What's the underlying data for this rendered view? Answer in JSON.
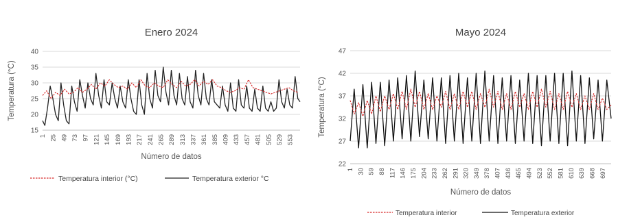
{
  "chart_data": [
    {
      "type": "line",
      "title": "Enero 2024",
      "xlabel": "Número de datos",
      "ylabel": "Temperatura (°C)",
      "ylim": [
        15,
        40
      ],
      "yticks": [
        15,
        20,
        25,
        30,
        35,
        40
      ],
      "xticks": [
        1,
        25,
        49,
        73,
        97,
        121,
        145,
        169,
        193,
        217,
        241,
        265,
        289,
        313,
        337,
        361,
        385,
        409,
        433,
        457,
        481,
        505,
        529,
        553
      ],
      "x_max": 575,
      "grid": true,
      "legend_position": "bottom",
      "series": [
        {
          "name": "Temperatura interior (°C)",
          "color": "#d62828",
          "style": "dashed",
          "x": [
            1,
            10,
            20,
            30,
            40,
            50,
            60,
            70,
            80,
            90,
            100,
            110,
            120,
            130,
            140,
            150,
            160,
            170,
            180,
            190,
            200,
            210,
            220,
            230,
            240,
            250,
            260,
            270,
            280,
            290,
            300,
            310,
            320,
            330,
            340,
            350,
            360,
            370,
            380,
            390,
            400,
            410,
            420,
            430,
            440,
            450,
            460,
            470,
            480,
            490,
            500,
            510,
            520,
            530,
            540,
            550,
            560,
            570
          ],
          "values": [
            26,
            27.5,
            25,
            27,
            26,
            28,
            26.5,
            27,
            28.5,
            27,
            28,
            29.5,
            28,
            30,
            29,
            31,
            29.5,
            28.5,
            29,
            28,
            30,
            28.5,
            31,
            29,
            28.5,
            30,
            29,
            28.5,
            31,
            29.5,
            28.5,
            30.5,
            29,
            29.5,
            31,
            29,
            30.5,
            29.5,
            31,
            29,
            28.5,
            27.5,
            27,
            27.5,
            28.5,
            28,
            31,
            28.5,
            28,
            27.5,
            27,
            26.5,
            27,
            27.5,
            28,
            28.5,
            27.5,
            27
          ]
        },
        {
          "name": "Temperatura exterior °C",
          "color": "#222222",
          "style": "solid",
          "x": [
            1,
            6,
            12,
            18,
            24,
            30,
            36,
            42,
            48,
            54,
            60,
            66,
            72,
            78,
            84,
            90,
            96,
            102,
            108,
            114,
            120,
            126,
            132,
            138,
            144,
            150,
            156,
            162,
            168,
            174,
            180,
            186,
            192,
            198,
            204,
            210,
            216,
            222,
            228,
            234,
            240,
            246,
            252,
            258,
            264,
            270,
            276,
            282,
            288,
            294,
            300,
            306,
            312,
            318,
            324,
            330,
            336,
            342,
            348,
            354,
            360,
            366,
            372,
            378,
            384,
            390,
            396,
            402,
            408,
            414,
            420,
            426,
            432,
            438,
            444,
            450,
            456,
            462,
            468,
            474,
            480,
            486,
            492,
            498,
            504,
            510,
            516,
            522,
            528,
            534,
            540,
            546,
            552,
            558,
            564,
            570,
            575
          ],
          "values": [
            18,
            16.5,
            22,
            29,
            25,
            20,
            18,
            30,
            23,
            18,
            17,
            29,
            24,
            21,
            31,
            26,
            22,
            30,
            25,
            23,
            33,
            26,
            22,
            31,
            24,
            23,
            30,
            25,
            22,
            29,
            24,
            22,
            31,
            25,
            21,
            20,
            31,
            23,
            20,
            33,
            25,
            22,
            34,
            26,
            24,
            35,
            27,
            23,
            34,
            26,
            23,
            33,
            25,
            23,
            32,
            24,
            22,
            34,
            26,
            23,
            33,
            25,
            23,
            31,
            24,
            23,
            22,
            29,
            23,
            21,
            30,
            22,
            21,
            31,
            23,
            22,
            29,
            22,
            21,
            28,
            22,
            21,
            29,
            22,
            21,
            24,
            21,
            22,
            31,
            24,
            22,
            28,
            23,
            22,
            32,
            25,
            24
          ]
        }
      ]
    },
    {
      "type": "line",
      "title": "Mayo 2024",
      "xlabel": "Número de datos",
      "ylabel": "Temperatura (°C)",
      "ylim": [
        22,
        47
      ],
      "yticks": [
        22,
        27,
        32,
        37,
        42,
        47
      ],
      "xticks": [
        1,
        30,
        59,
        88,
        117,
        146,
        175,
        204,
        233,
        262,
        291,
        320,
        349,
        378,
        407,
        436,
        465,
        494,
        523,
        552,
        581,
        610,
        639,
        668,
        697
      ],
      "x_max": 720,
      "grid": true,
      "legend_position": "bottom",
      "series": [
        {
          "name": "Temperatura interior",
          "color": "#d62828",
          "style": "dashed",
          "x": [
            1,
            12,
            24,
            36,
            48,
            60,
            72,
            84,
            96,
            108,
            120,
            132,
            144,
            156,
            168,
            180,
            192,
            204,
            216,
            228,
            240,
            252,
            264,
            276,
            288,
            300,
            312,
            324,
            336,
            348,
            360,
            372,
            384,
            396,
            408,
            420,
            432,
            444,
            456,
            468,
            480,
            492,
            504,
            516,
            528,
            540,
            552,
            564,
            576,
            588,
            600,
            612,
            624,
            636,
            648,
            660,
            672,
            684,
            696,
            708,
            720
          ],
          "values": [
            36,
            33,
            35.5,
            32.5,
            36,
            33,
            37,
            33.5,
            37,
            34,
            37.5,
            34,
            38,
            34,
            38.5,
            34.5,
            38,
            34,
            37.5,
            34,
            37,
            34.5,
            38,
            34,
            37.5,
            34,
            38,
            34.5,
            38,
            34,
            37.5,
            34.5,
            38.5,
            34.5,
            38,
            34,
            37.5,
            34,
            38,
            34.5,
            37.5,
            34,
            38,
            34.5,
            38.5,
            34.5,
            38,
            34,
            37.5,
            34,
            38,
            34.5,
            37.5,
            34,
            37,
            34,
            37.5,
            34,
            36.5,
            34,
            35
          ]
        },
        {
          "name": "Temperatura exterior",
          "color": "#111111",
          "style": "solid",
          "x": [
            1,
            12,
            24,
            36,
            48,
            60,
            72,
            84,
            96,
            108,
            120,
            132,
            144,
            156,
            168,
            180,
            192,
            204,
            216,
            228,
            240,
            252,
            264,
            276,
            288,
            300,
            312,
            324,
            336,
            348,
            360,
            372,
            384,
            396,
            408,
            420,
            432,
            444,
            456,
            468,
            480,
            492,
            504,
            516,
            528,
            540,
            552,
            564,
            576,
            588,
            600,
            612,
            624,
            636,
            648,
            660,
            672,
            684,
            696,
            708,
            720
          ],
          "values": [
            27,
            38.5,
            25.5,
            39.5,
            25.5,
            40,
            26.5,
            40,
            26,
            40.5,
            27,
            41,
            27.5,
            41.5,
            27,
            42.5,
            28,
            40.5,
            27.5,
            41,
            27,
            41,
            26.5,
            41.5,
            27,
            42,
            26.5,
            41,
            27,
            42,
            26.5,
            42.5,
            27,
            41.5,
            26.5,
            41,
            27,
            41.5,
            26.5,
            40.5,
            27,
            42,
            26.5,
            41.5,
            26,
            41.5,
            27,
            42,
            26.5,
            42,
            26,
            42.5,
            27,
            41.5,
            26.5,
            41,
            27.5,
            40.5,
            27,
            40.5,
            32
          ]
        }
      ]
    }
  ]
}
